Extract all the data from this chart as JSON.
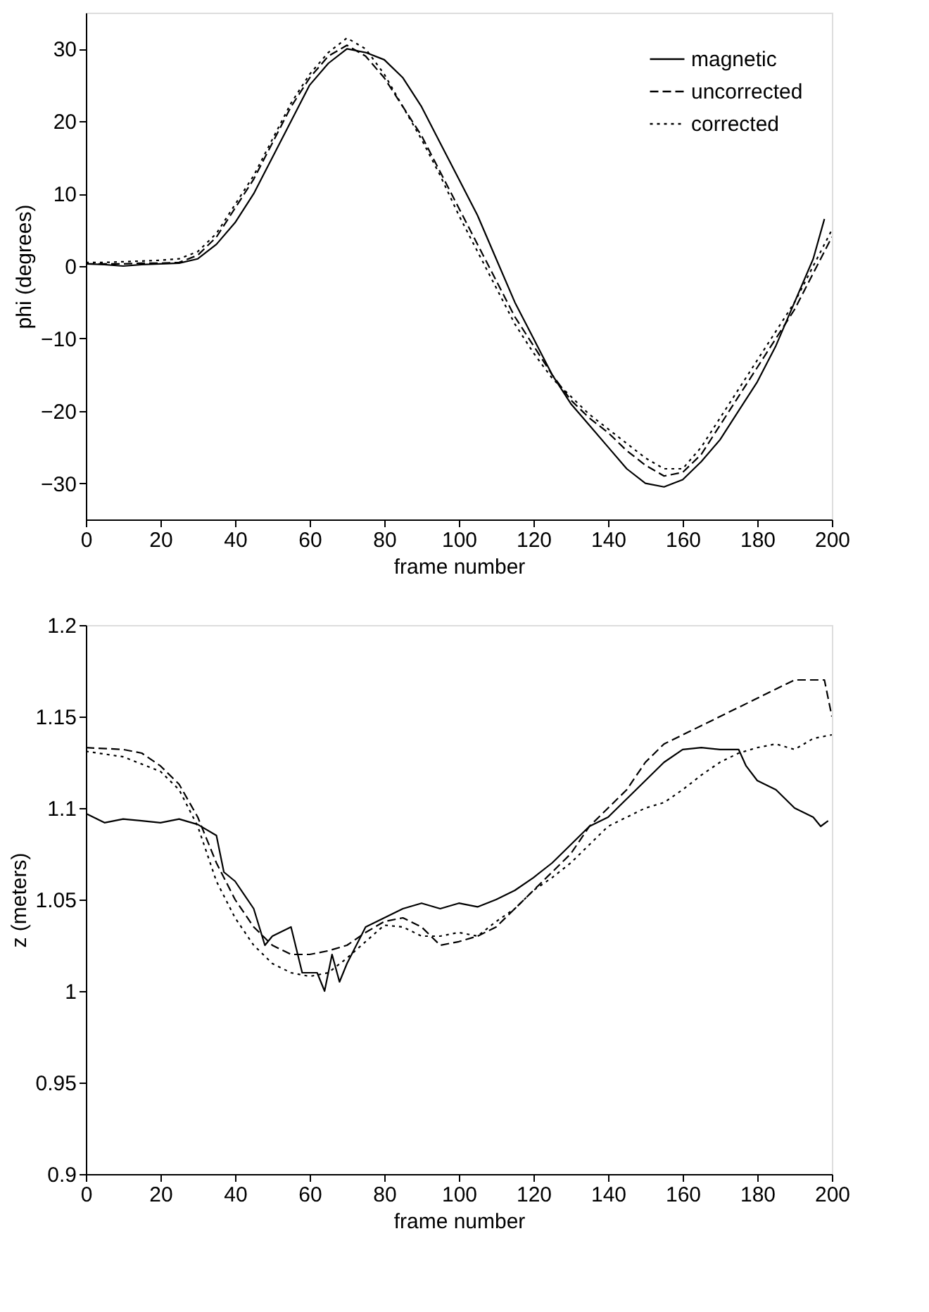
{
  "chart_data": [
    {
      "type": "line",
      "xlabel": "frame number",
      "ylabel": "phi (degrees)",
      "xlim": [
        0,
        200
      ],
      "xticks": [
        0,
        20,
        40,
        60,
        80,
        100,
        120,
        140,
        160,
        180,
        200
      ],
      "ylim": [
        -35,
        35
      ],
      "yticks": [
        -30,
        -20,
        -10,
        0,
        10,
        20,
        30
      ],
      "grid": false,
      "legend": "top right",
      "series": [
        {
          "name": "magnetic",
          "color": "#000000",
          "line_style": "solid",
          "x": [
            0,
            5,
            10,
            15,
            20,
            25,
            30,
            35,
            40,
            45,
            50,
            55,
            60,
            65,
            70,
            75,
            80,
            85,
            90,
            95,
            100,
            105,
            110,
            115,
            120,
            125,
            130,
            135,
            140,
            145,
            150,
            155,
            160,
            165,
            170,
            175,
            180,
            185,
            190,
            195,
            198
          ],
          "values": [
            0.3,
            0.2,
            0,
            0.2,
            0.3,
            0.4,
            1,
            3,
            6,
            10,
            15,
            20,
            25,
            28,
            30,
            29.5,
            28.5,
            26,
            22,
            17,
            12,
            7,
            1,
            -5,
            -10,
            -15,
            -19,
            -22,
            -25,
            -28,
            -30,
            -30.5,
            -29.5,
            -27,
            -24,
            -20,
            -16,
            -11,
            -5,
            1,
            6.5
          ]
        },
        {
          "name": "uncorrected",
          "color": "#000000",
          "line_style": "dashed",
          "x": [
            0,
            5,
            10,
            15,
            20,
            25,
            30,
            35,
            40,
            45,
            50,
            55,
            60,
            65,
            70,
            75,
            80,
            85,
            90,
            95,
            100,
            105,
            110,
            115,
            120,
            125,
            130,
            135,
            140,
            145,
            150,
            155,
            160,
            165,
            170,
            175,
            180,
            185,
            190,
            195,
            200
          ],
          "values": [
            0.3,
            0.3,
            0.3,
            0.4,
            0.4,
            0.5,
            1.5,
            4,
            8,
            12,
            17,
            22,
            26,
            29,
            30.5,
            29,
            26,
            22,
            18,
            13,
            8,
            3,
            -2,
            -7,
            -11,
            -15,
            -18.5,
            -21,
            -23,
            -25.5,
            -27.5,
            -29,
            -28.5,
            -26,
            -22,
            -18,
            -14,
            -10,
            -6,
            -1,
            4
          ]
        },
        {
          "name": "corrected",
          "color": "#000000",
          "line_style": "dotted",
          "x": [
            0,
            5,
            10,
            15,
            20,
            25,
            30,
            35,
            40,
            45,
            50,
            55,
            60,
            65,
            70,
            75,
            80,
            85,
            90,
            95,
            100,
            105,
            110,
            115,
            120,
            125,
            130,
            135,
            140,
            145,
            150,
            155,
            160,
            165,
            170,
            175,
            180,
            185,
            190,
            195,
            200
          ],
          "values": [
            0.5,
            0.5,
            0.6,
            0.7,
            0.8,
            1,
            2,
            4.5,
            8.5,
            12.5,
            17.5,
            22.5,
            26.5,
            29.5,
            31.5,
            30,
            26.5,
            22,
            17.5,
            12.5,
            7,
            2,
            -3,
            -8,
            -12,
            -15.5,
            -18,
            -20.5,
            -22.5,
            -24.5,
            -26.5,
            -28,
            -28,
            -25,
            -21,
            -17,
            -13,
            -9,
            -5,
            0,
            5
          ]
        }
      ]
    },
    {
      "type": "line",
      "xlabel": "frame number",
      "ylabel": "z (meters)",
      "xlim": [
        0,
        200
      ],
      "xticks": [
        0,
        20,
        40,
        60,
        80,
        100,
        120,
        140,
        160,
        180,
        200
      ],
      "ylim": [
        0.9,
        1.2
      ],
      "yticks": [
        0.9,
        0.95,
        1,
        1.05,
        1.1,
        1.15,
        1.2
      ],
      "grid": false,
      "legend": "top right",
      "series": [
        {
          "name": "magnetic",
          "color": "#000000",
          "line_style": "solid",
          "x": [
            0,
            5,
            10,
            15,
            20,
            25,
            30,
            35,
            37,
            40,
            45,
            48,
            50,
            55,
            58,
            62,
            64,
            66,
            68,
            70,
            75,
            80,
            85,
            90,
            95,
            100,
            105,
            110,
            115,
            120,
            125,
            130,
            135,
            140,
            145,
            150,
            155,
            160,
            165,
            170,
            175,
            177,
            180,
            185,
            190,
            195,
            197,
            199
          ],
          "values": [
            1.097,
            1.092,
            1.094,
            1.093,
            1.092,
            1.094,
            1.091,
            1.085,
            1.065,
            1.06,
            1.045,
            1.025,
            1.03,
            1.035,
            1.01,
            1.01,
            1.0,
            1.02,
            1.005,
            1.015,
            1.035,
            1.04,
            1.045,
            1.048,
            1.045,
            1.048,
            1.046,
            1.05,
            1.055,
            1.062,
            1.07,
            1.08,
            1.09,
            1.095,
            1.105,
            1.115,
            1.125,
            1.132,
            1.133,
            1.132,
            1.132,
            1.123,
            1.115,
            1.11,
            1.1,
            1.095,
            1.09,
            1.093
          ]
        },
        {
          "name": "uncorrected",
          "color": "#000000",
          "line_style": "dashed",
          "x": [
            0,
            10,
            15,
            20,
            25,
            30,
            35,
            40,
            45,
            50,
            55,
            60,
            65,
            70,
            75,
            80,
            85,
            90,
            95,
            100,
            105,
            110,
            115,
            120,
            125,
            130,
            135,
            140,
            145,
            150,
            155,
            160,
            165,
            170,
            175,
            180,
            185,
            190,
            195,
            198,
            200
          ],
          "values": [
            1.133,
            1.132,
            1.13,
            1.123,
            1.113,
            1.095,
            1.07,
            1.05,
            1.035,
            1.025,
            1.02,
            1.02,
            1.022,
            1.025,
            1.032,
            1.038,
            1.04,
            1.035,
            1.025,
            1.027,
            1.03,
            1.035,
            1.045,
            1.055,
            1.065,
            1.075,
            1.09,
            1.1,
            1.11,
            1.125,
            1.135,
            1.14,
            1.145,
            1.15,
            1.155,
            1.16,
            1.165,
            1.17,
            1.17,
            1.17,
            1.15
          ]
        },
        {
          "name": "corrected",
          "color": "#000000",
          "line_style": "dotted",
          "x": [
            0,
            10,
            20,
            25,
            30,
            35,
            40,
            45,
            50,
            55,
            60,
            65,
            70,
            75,
            80,
            85,
            90,
            95,
            100,
            105,
            110,
            115,
            120,
            125,
            130,
            135,
            140,
            145,
            150,
            155,
            160,
            165,
            170,
            175,
            180,
            185,
            190,
            195,
            200
          ],
          "values": [
            1.131,
            1.128,
            1.12,
            1.11,
            1.09,
            1.06,
            1.04,
            1.025,
            1.015,
            1.01,
            1.008,
            1.01,
            1.018,
            1.027,
            1.036,
            1.035,
            1.03,
            1.03,
            1.032,
            1.03,
            1.038,
            1.045,
            1.055,
            1.062,
            1.07,
            1.08,
            1.09,
            1.095,
            1.1,
            1.103,
            1.11,
            1.118,
            1.125,
            1.13,
            1.133,
            1.135,
            1.132,
            1.138,
            1.14
          ]
        }
      ]
    }
  ]
}
